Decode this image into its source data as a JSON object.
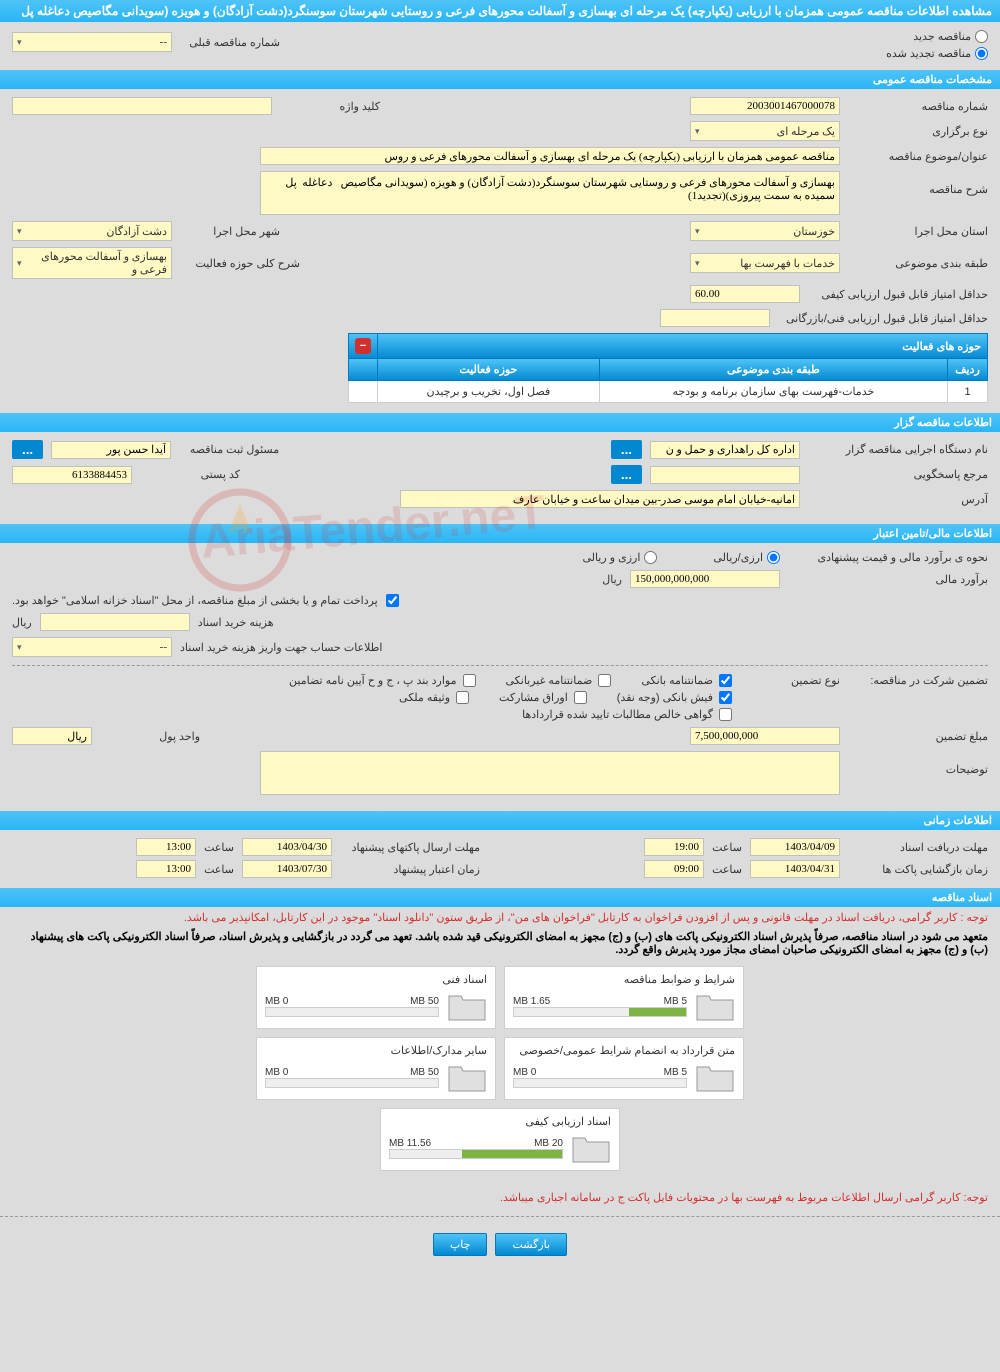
{
  "header": {
    "title": "مشاهده اطلاعات مناقصه عمومی همزمان با ارزیابی (یکپارچه) یک مرحله ای بهسازی و آسفالت محورهای فرعی و روستایی شهرستان سوسنگرد(دشت آزادگان) و هویزه (سویدانی مگاصیص دعاغله پل"
  },
  "topOptions": {
    "new_tender": "مناقصه جدید",
    "renewed_tender": "مناقصه تجدید شده",
    "prev_tender_label": "شماره مناقصه قبلی",
    "prev_tender_value": "--"
  },
  "sections": {
    "general": "مشخصات مناقصه عمومی",
    "holder": "اطلاعات مناقصه گزار",
    "financial": "اطلاعات مالی/تامین اعتبار",
    "time": "اطلاعات زمانی",
    "documents": "اسناد مناقصه"
  },
  "general": {
    "tender_number_label": "شماره مناقصه",
    "tender_number": "2003001467000078",
    "keyword_label": "کلید واژه",
    "keyword": "",
    "holding_type_label": "نوع برگزاری",
    "holding_type": "یک مرحله ای",
    "subject_label": "عنوان/موضوع مناقصه",
    "subject": "مناقصه عمومی همزمان با ارزیابی (یکپارچه) یک مرحله ای بهسازی و آسفالت محورهای فرعی و روس",
    "description_label": "شرح مناقصه",
    "description": "بهسازی و آسفالت محورهای فرعی و روستایی شهرستان سوسنگرد(دشت آزادگان) و هویزه (سویدانی مگاصیص   دعاغله  پل سمیده به سمت پیروزی)(تجدید1)",
    "province_label": "استان محل اجرا",
    "province": "خوزستان",
    "city_label": "شهر محل اجرا",
    "city": "دشت آزادگان",
    "category_label": "طبقه بندی موضوعی",
    "category": "خدمات با فهرست بها",
    "activity_title_label": "شرح کلی حوزه فعالیت",
    "activity_title": "بهسازی و آسفالت محورهای فرعی و",
    "min_qual_score_label": "حداقل امتیاز قابل قبول ارزیابی کیفی",
    "min_qual_score": "60.00",
    "min_tech_score_label": "حداقل امتیاز قابل قبول ارزیابی فنی/بازرگانی",
    "min_tech_score": ""
  },
  "activityTable": {
    "header": "حوزه های فعالیت",
    "col_row": "ردیف",
    "col_category": "طبقه بندی موضوعی",
    "col_activity": "حوزه فعالیت",
    "row1_num": "1",
    "row1_category": "خدمات-فهرست بهای سازمان برنامه و بودجه",
    "row1_activity": "فصل اول، تخریب و برچیدن"
  },
  "holder": {
    "org_label": "نام دستگاه اجرایی مناقصه گزار",
    "org": "اداره کل راهداری و حمل و ن",
    "registrar_label": "مسئول ثبت مناقصه",
    "registrar": "آیدا حسن پور",
    "respondent_label": "مرجع پاسخگویی",
    "respondent": "",
    "postal_label": "کد پستی",
    "postal": "6133884453",
    "address_label": "آدرس",
    "address": "امانیه-خیابان امام موسی صدر-بین میدان ساعت و خیابان عارف"
  },
  "financial": {
    "estimate_method_label": "نحوه ی برآورد مالی و قیمت پیشنهادی",
    "opt_rial": "ارزی/ریالی",
    "opt_foreign": "ارزی و ریالی",
    "estimate_label": "برآورد مالی",
    "estimate": "150,000,000,000",
    "currency": "ریال",
    "payment_note": "پرداخت تمام و یا بخشی از مبلغ مناقصه، از محل \"اسناد خزانه اسلامی\" خواهد بود.",
    "doc_cost_label": "هزینه خرید اسناد",
    "doc_cost": "",
    "account_label": "اطلاعات حساب جهت واریز هزینه خرید اسناد",
    "account": "--",
    "guarantee_label": "تضمین شرکت در مناقصه:",
    "guarantee_type_label": "نوع تضمین",
    "chk_bank": "ضمانتنامه بانکی",
    "chk_nonbank": "ضمانتنامه غیربانکی",
    "chk_bond": "موارد بند پ ، ج و ح آیین نامه تضامین",
    "chk_cash": "فیش بانکی (وجه نقد)",
    "chk_securities": "اوراق مشارکت",
    "chk_property": "وثیقه ملکی",
    "chk_receivables": "گواهی خالص مطالبات تایید شده قراردادها",
    "guarantee_amount_label": "مبلغ تضمین",
    "guarantee_amount": "7,500,000,000",
    "currency_unit_label": "واحد پول",
    "currency_unit": "ریال",
    "notes_label": "توضیحات",
    "notes": ""
  },
  "time": {
    "receive_deadline_label": "مهلت دریافت اسناد",
    "receive_deadline_date": "1403/04/09",
    "receive_deadline_time_label": "ساعت",
    "receive_deadline_time": "19:00",
    "send_deadline_label": "مهلت ارسال پاکتهای پیشنهاد",
    "send_deadline_date": "1403/04/30",
    "send_deadline_time_label": "ساعت",
    "send_deadline_time": "13:00",
    "opening_label": "زمان بازگشایی پاکت ها",
    "opening_date": "1403/04/31",
    "opening_time_label": "ساعت",
    "opening_time": "09:00",
    "validity_label": "زمان اعتبار پیشنهاد",
    "validity_date": "1403/07/30",
    "validity_time_label": "ساعت",
    "validity_time": "13:00"
  },
  "documents": {
    "note1": "توجه : کاربر گرامی، دریافت اسناد در مهلت قانونی و پس از افزودن فراخوان به کارتابل \"فراخوان های من\"، از طریق ستون \"دانلود اسناد\" موجود در این کارتابل، امکانپذیر می باشد.",
    "note2": "متعهد می شود در اسناد مناقصه، صرفاً پذیرش اسناد الکترونیکی پاکت های (ب) و (ج) مجهز به امضای الکترونیکی قید شده باشد. تعهد می گردد در بازگشایی و پذیرش اسناد، صرفاً اسناد الکترونیکی پاکت های پیشنهاد (ب) و (ج) مجهز به امضای الکترونیکی صاحبان امضای مجاز مورد پذیرش واقع گردد.",
    "note3": "توجه: کاربر گرامی ارسال اطلاعات مربوط به فهرست بها در محتویات فایل پاکت ج در سامانه اجباری میباشد.",
    "doc1_title": "شرایط و ضوابط مناقصه",
    "doc1_used": "1.65 MB",
    "doc1_total": "5 MB",
    "doc1_pct": 33,
    "doc2_title": "اسناد فنی",
    "doc2_used": "0 MB",
    "doc2_total": "50 MB",
    "doc2_pct": 0,
    "doc3_title": "متن قرارداد به انضمام شرایط عمومی/خصوصی",
    "doc3_used": "0 MB",
    "doc3_total": "5 MB",
    "doc3_pct": 0,
    "doc4_title": "سایر مدارک/اطلاعات",
    "doc4_used": "0 MB",
    "doc4_total": "50 MB",
    "doc4_pct": 0,
    "doc5_title": "اسناد ارزیابی کیفی",
    "doc5_used": "11.56 MB",
    "doc5_total": "20 MB",
    "doc5_pct": 58
  },
  "buttons": {
    "back": "بازگشت",
    "print": "چاپ"
  },
  "colors": {
    "header_bg": "#29b6f6",
    "yellow_bg": "#fff9c4",
    "body_bg": "#dcdcdc",
    "red_text": "#d32f2f",
    "progress_green": "#7cb342"
  }
}
